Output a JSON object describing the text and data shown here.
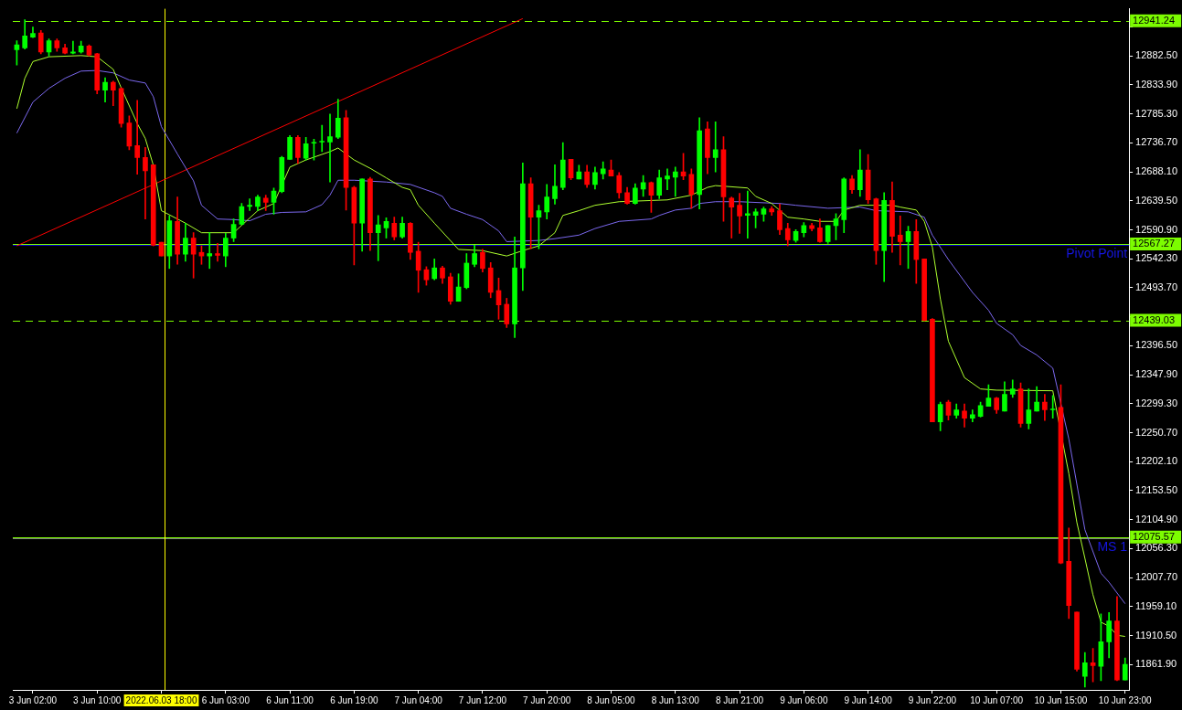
{
  "chart_data": {
    "type": "candlestick",
    "categories": [
      null,
      null,
      "3 Jun 02:00",
      null,
      null,
      null,
      null,
      null,
      null,
      null,
      "3 Jun 10:00",
      null,
      null,
      null,
      null,
      null,
      null,
      null,
      "2022.06.03 18:00",
      null,
      null,
      null,
      null,
      null,
      null,
      null,
      "6 Jun 03:00",
      null,
      null,
      null,
      null,
      null,
      null,
      null,
      "6 Jun 11:00",
      null,
      null,
      null,
      null,
      null,
      null,
      null,
      "6 Jun 19:00",
      null,
      null,
      null,
      null,
      null,
      null,
      null,
      "7 Jun 04:00",
      null,
      null,
      null,
      null,
      null,
      null,
      null,
      "7 Jun 12:00",
      null,
      null,
      null,
      null,
      null,
      null,
      null,
      "7 Jun 20:00",
      null,
      null,
      null,
      null,
      null,
      null,
      null,
      "8 Jun 05:00",
      null,
      null,
      null,
      null,
      null,
      null,
      null,
      "8 Jun 13:00",
      null,
      null,
      null,
      null,
      null,
      null,
      null,
      "8 Jun 21:00",
      null,
      null,
      null,
      null,
      null,
      null,
      null,
      "9 Jun 06:00",
      null,
      null,
      null,
      null,
      null,
      null,
      null,
      "9 Jun 14:00",
      null,
      null,
      null,
      null,
      null,
      null,
      null,
      "9 Jun 22:00",
      null,
      null,
      null,
      null,
      null,
      null,
      null,
      "10 Jun 07:00",
      null,
      null,
      null,
      null,
      null,
      null,
      null,
      "10 Jun 15:00",
      null,
      null,
      null,
      null,
      null,
      null,
      null,
      "10 Jun 23:00"
    ],
    "ohlc": [
      [
        12893,
        12908,
        12867,
        12901
      ],
      [
        12896,
        12943,
        12894,
        12916
      ],
      [
        12914,
        12931,
        12913,
        12920
      ],
      [
        12921,
        12925,
        12886,
        12889
      ],
      [
        12889,
        12911,
        12882,
        12908
      ],
      [
        12908,
        12911,
        12890,
        12896
      ],
      [
        12896,
        12902,
        12886,
        12887
      ],
      [
        12887,
        12907,
        12886,
        12889
      ],
      [
        12889,
        12907,
        12887,
        12899
      ],
      [
        12899,
        12901,
        12882,
        12884
      ],
      [
        12886,
        12887,
        12819,
        12825
      ],
      [
        12825,
        12846,
        12805,
        12838
      ],
      [
        12838,
        12840,
        12799,
        12825
      ],
      [
        12828,
        12829,
        12763,
        12769
      ],
      [
        12770,
        12782,
        12725,
        12731
      ],
      [
        12732,
        12808,
        12684,
        12712
      ],
      [
        12712,
        12729,
        12609,
        12690
      ],
      [
        12700,
        12700,
        12564,
        12565
      ],
      [
        12570,
        12570,
        12547,
        12547
      ],
      [
        12547,
        12614,
        12526,
        12606
      ],
      [
        12605,
        12646,
        12533,
        12550
      ],
      [
        12550,
        12602,
        12538,
        12577
      ],
      [
        12577,
        12586,
        12510,
        12550
      ],
      [
        12553,
        12564,
        12533,
        12547
      ],
      [
        12547,
        12586,
        12526,
        12551
      ],
      [
        12551,
        12568,
        12538,
        12548
      ],
      [
        12547,
        12585,
        12529,
        12577
      ],
      [
        12577,
        12609,
        12571,
        12600
      ],
      [
        12600,
        12635,
        12599,
        12630
      ],
      [
        12630,
        12643,
        12623,
        12632
      ],
      [
        12630,
        12649,
        12623,
        12646
      ],
      [
        12644,
        12649,
        12623,
        12637
      ],
      [
        12637,
        12661,
        12617,
        12656
      ],
      [
        12655,
        12714,
        12653,
        12712
      ],
      [
        12709,
        12749,
        12709,
        12746
      ],
      [
        12746,
        12749,
        12702,
        12712
      ],
      [
        12711,
        12746,
        12708,
        12735
      ],
      [
        12736,
        12743,
        12708,
        12737
      ],
      [
        12738,
        12766,
        12722,
        12739
      ],
      [
        12738,
        12785,
        12671,
        12747
      ],
      [
        12746,
        12810,
        12744,
        12778
      ],
      [
        12779,
        12791,
        12624,
        12662
      ],
      [
        12662,
        12664,
        12532,
        12602
      ],
      [
        12602,
        12676,
        12555,
        12676
      ],
      [
        12676,
        12679,
        12556,
        12586
      ],
      [
        12586,
        12615,
        12539,
        12599
      ],
      [
        12594,
        12611,
        12577,
        12605
      ],
      [
        12602,
        12612,
        12574,
        12579
      ],
      [
        12579,
        12612,
        12577,
        12602
      ],
      [
        12602,
        12603,
        12541,
        12553
      ],
      [
        12555,
        12570,
        12486,
        12523
      ],
      [
        12524,
        12529,
        12498,
        12507
      ],
      [
        12509,
        12542,
        12507,
        12527
      ],
      [
        12527,
        12530,
        12501,
        12510
      ],
      [
        12512,
        12518,
        12466,
        12471
      ],
      [
        12471,
        12517,
        12471,
        12495
      ],
      [
        12494,
        12551,
        12492,
        12535
      ],
      [
        12533,
        12565,
        12529,
        12551
      ],
      [
        12553,
        12558,
        12520,
        12526
      ],
      [
        12527,
        12536,
        12477,
        12486
      ],
      [
        12489,
        12510,
        12441,
        12465
      ],
      [
        12466,
        12476,
        12427,
        12433
      ],
      [
        12433,
        12579,
        12410,
        12527
      ],
      [
        12527,
        12703,
        12489,
        12668
      ],
      [
        12668,
        12678,
        12559,
        12612
      ],
      [
        12612,
        12632,
        12559,
        12623
      ],
      [
        12621,
        12667,
        12609,
        12646
      ],
      [
        12643,
        12700,
        12634,
        12664
      ],
      [
        12662,
        12737,
        12658,
        12708
      ],
      [
        12709,
        12709,
        12675,
        12678
      ],
      [
        12676,
        12699,
        12676,
        12688
      ],
      [
        12688,
        12699,
        12662,
        12667
      ],
      [
        12667,
        12696,
        12659,
        12687
      ],
      [
        12685,
        12705,
        12676,
        12693
      ],
      [
        12691,
        12708,
        12681,
        12681
      ],
      [
        12682,
        12687,
        12644,
        12653
      ],
      [
        12653,
        12662,
        12634,
        12635
      ],
      [
        12635,
        12668,
        12634,
        12661
      ],
      [
        12659,
        12682,
        12647,
        12670
      ],
      [
        12670,
        12671,
        12620,
        12649
      ],
      [
        12649,
        12691,
        12643,
        12678
      ],
      [
        12676,
        12693,
        12658,
        12681
      ],
      [
        12679,
        12696,
        12647,
        12688
      ],
      [
        12688,
        12719,
        12675,
        12681
      ],
      [
        12684,
        12693,
        12627,
        12650
      ],
      [
        12650,
        12779,
        12626,
        12757
      ],
      [
        12760,
        12772,
        12685,
        12712
      ],
      [
        12712,
        12772,
        12688,
        12725
      ],
      [
        12725,
        12747,
        12605,
        12646
      ],
      [
        12644,
        12646,
        12577,
        12629
      ],
      [
        12632,
        12652,
        12585,
        12614
      ],
      [
        12615,
        12656,
        12577,
        12618
      ],
      [
        12615,
        12626,
        12594,
        12621
      ],
      [
        12617,
        12629,
        12605,
        12626
      ],
      [
        12626,
        12630,
        12615,
        12621
      ],
      [
        12623,
        12634,
        12583,
        12591
      ],
      [
        12593,
        12602,
        12564,
        12574
      ],
      [
        12573,
        12591,
        12570,
        12588
      ],
      [
        12586,
        12603,
        12579,
        12598
      ],
      [
        12598,
        12602,
        12589,
        12593
      ],
      [
        12594,
        12609,
        12570,
        12571
      ],
      [
        12571,
        12598,
        12568,
        12598
      ],
      [
        12598,
        12618,
        12574,
        12609
      ],
      [
        12608,
        12678,
        12586,
        12676
      ],
      [
        12676,
        12682,
        12652,
        12658
      ],
      [
        12658,
        12725,
        12647,
        12691
      ],
      [
        12691,
        12717,
        12635,
        12641
      ],
      [
        12643,
        12644,
        12533,
        12556
      ],
      [
        12556,
        12653,
        12504,
        12640
      ],
      [
        12640,
        12671,
        12553,
        12580
      ],
      [
        12582,
        12614,
        12532,
        12571
      ],
      [
        12571,
        12597,
        12526,
        12588
      ],
      [
        12588,
        12608,
        12501,
        12541
      ],
      [
        12542,
        12542,
        12438,
        12439
      ],
      [
        12441,
        12442,
        12269,
        12269
      ],
      [
        12269,
        12302,
        12254,
        12298
      ],
      [
        12302,
        12305,
        12272,
        12280
      ],
      [
        12280,
        12299,
        12275,
        12289
      ],
      [
        12287,
        12299,
        12260,
        12275
      ],
      [
        12275,
        12289,
        12269,
        12281
      ],
      [
        12278,
        12302,
        12277,
        12296
      ],
      [
        12295,
        12331,
        12295,
        12309
      ],
      [
        12309,
        12310,
        12283,
        12289
      ],
      [
        12287,
        12336,
        12287,
        12315
      ],
      [
        12315,
        12339,
        12310,
        12324
      ],
      [
        12324,
        12334,
        12260,
        12266
      ],
      [
        12266,
        12324,
        12257,
        12289
      ],
      [
        12287,
        12328,
        12287,
        12302
      ],
      [
        12302,
        12315,
        12271,
        12289
      ],
      [
        12289,
        12313,
        12275,
        12290
      ],
      [
        12293,
        12331,
        12031,
        12032
      ],
      [
        12035,
        12091,
        11939,
        11961
      ],
      [
        11950,
        11950,
        11851,
        11854
      ],
      [
        11842,
        11882,
        11824,
        11865
      ],
      [
        11865,
        11889,
        11833,
        11860
      ],
      [
        11859,
        11947,
        11835,
        11900
      ],
      [
        11900,
        11949,
        11873,
        11935
      ],
      [
        11935,
        11976,
        11835,
        11836
      ],
      [
        11836,
        11873,
        11836,
        11862
      ]
    ],
    "series": [
      {
        "type": "line",
        "color": "#adff2f",
        "values": [
          12794,
          12845,
          12873,
          null,
          12881,
          null,
          null,
          null,
          12883,
          null,
          12881,
          null,
          12860,
          12829,
          null,
          12769,
          12744,
          12699,
          12623,
          null,
          null,
          12602,
          null,
          12586,
          null,
          null,
          null,
          12586,
          null,
          null,
          12623,
          null,
          12635,
          null,
          12696,
          null,
          12708,
          null,
          null,
          12722,
          12728,
          null,
          12708,
          null,
          12694,
          null,
          12678,
          null,
          12662,
          12658,
          12632,
          null,
          12602,
          null,
          null,
          12558,
          null,
          null,
          12556,
          null,
          null,
          12547,
          null,
          12556,
          null,
          12564,
          null,
          12586,
          12615,
          null,
          12623,
          null,
          12632,
          null,
          null,
          12638,
          null,
          null,
          null,
          12640,
          null,
          12641,
          null,
          null,
          12649,
          null,
          12662,
          12665,
          null,
          null,
          null,
          12661,
          12647,
          null,
          12635,
          null,
          12612,
          null,
          12609,
          null,
          12605,
          null,
          12605,
          12624,
          null,
          12632,
          null,
          null,
          null,
          12632,
          12629,
          null,
          12624,
          12605,
          12562,
          12475,
          12404,
          null,
          12343,
          null,
          12324,
          null,
          12322,
          null,
          null,
          null,
          null,
          null,
          null,
          12321,
          null,
          12182,
          12100,
          12040,
          11979,
          11933,
          11926,
          11911,
          11909
        ]
      },
      {
        "type": "line",
        "color": "#7b68ee",
        "values": [
          12753,
          null,
          12805,
          null,
          12828,
          null,
          12845,
          null,
          12857,
          null,
          12858,
          null,
          12854,
          null,
          12842,
          null,
          12837,
          12814,
          12764,
          null,
          12718,
          null,
          12673,
          12632,
          null,
          12609,
          null,
          12608,
          null,
          12606,
          null,
          12617,
          null,
          12620,
          null,
          null,
          12621,
          null,
          12633,
          12649,
          12674,
          null,
          12674,
          null,
          null,
          null,
          12671,
          null,
          null,
          12667,
          null,
          null,
          12653,
          12647,
          12627,
          null,
          12617,
          null,
          12608,
          null,
          12589,
          12571,
          null,
          null,
          null,
          12573,
          null,
          12576,
          null,
          null,
          12582,
          null,
          12593,
          null,
          null,
          12605,
          null,
          null,
          null,
          12609,
          12615,
          null,
          12624,
          null,
          12627,
          12635,
          null,
          12638,
          null,
          null,
          12638,
          null,
          null,
          null,
          null,
          12635,
          null,
          12632,
          null,
          null,
          null,
          12627,
          null,
          null,
          null,
          12629,
          null,
          12623,
          null,
          null,
          null,
          12621,
          null,
          12612,
          12582,
          null,
          12541,
          null,
          null,
          12486,
          null,
          12456,
          12434,
          null,
          12415,
          12397,
          null,
          12381,
          null,
          12359,
          null,
          12240,
          null,
          12088,
          null,
          12015,
          12000,
          null,
          11964
        ]
      },
      {
        "type": "line",
        "color": "#ff0000",
        "values": [
          12564,
          null,
          null,
          null,
          null,
          null,
          null,
          null,
          null,
          null,
          null,
          null,
          null,
          null,
          null,
          null,
          null,
          null,
          null,
          null,
          null,
          null,
          null,
          null,
          null,
          null,
          null,
          null,
          null,
          null,
          null,
          null,
          null,
          null,
          null,
          null,
          null,
          null,
          null,
          null,
          null,
          null,
          null,
          null,
          null,
          null,
          null,
          null,
          null,
          null,
          null,
          null,
          null,
          null,
          null,
          null,
          null,
          null,
          null,
          null,
          null,
          null,
          null,
          12945,
          null,
          null,
          null,
          null,
          null,
          null,
          null,
          null,
          null,
          null,
          null,
          null,
          null,
          null,
          null,
          null,
          null,
          null,
          null,
          null,
          null,
          null,
          null,
          null,
          null,
          null,
          null,
          null,
          null,
          null,
          null,
          null,
          null,
          null,
          null,
          null,
          null,
          null,
          null,
          null,
          null,
          null,
          null,
          null,
          null,
          null,
          null,
          null,
          null,
          null,
          null,
          null,
          null,
          null,
          null,
          null,
          null,
          null,
          null,
          null,
          null,
          null,
          null,
          null,
          null,
          null,
          null,
          null,
          null,
          null,
          null,
          null,
          null,
          null,
          null
        ]
      }
    ],
    "ylim": [
      11819.4,
      12961.5
    ],
    "yticks": [
      {
        "value": 11861.9,
        "label": "11861.90"
      },
      {
        "value": 11910.5,
        "label": "11910.50"
      },
      {
        "value": 11959.1,
        "label": "11959.10"
      },
      {
        "value": 12007.7,
        "label": "12007.70"
      },
      {
        "value": 12056.3,
        "label": "12056.30"
      },
      {
        "value": 12104.9,
        "label": "12104.90"
      },
      {
        "value": 12153.5,
        "label": "12153.50"
      },
      {
        "value": 12202.1,
        "label": "12202.10"
      },
      {
        "value": 12250.7,
        "label": "12250.70"
      },
      {
        "value": 12299.3,
        "label": "12299.30"
      },
      {
        "value": 12347.9,
        "label": "12347.90"
      },
      {
        "value": 12396.5,
        "label": "12396.50"
      },
      {
        "value": 12445.1,
        "label": null
      },
      {
        "value": 12493.7,
        "label": "12493.70"
      },
      {
        "value": 12542.3,
        "label": "12542.30"
      },
      {
        "value": 12590.9,
        "label": "12590.90"
      },
      {
        "value": 12639.5,
        "label": "12639.50"
      },
      {
        "value": 12688.1,
        "label": "12688.10"
      },
      {
        "value": 12736.7,
        "label": "12736.70"
      },
      {
        "value": 12785.3,
        "label": "12785.30"
      },
      {
        "value": 12833.9,
        "label": "12833.90"
      },
      {
        "value": 12882.5,
        "label": "12882.50"
      },
      {
        "value": 12931.1,
        "label": null
      }
    ],
    "ref_lines": [
      {
        "axis": "y",
        "value": 12941.24,
        "color": "#7cfc00",
        "line_style": "dashed",
        "label": "12941.24"
      },
      {
        "axis": "y",
        "value": 12567.27,
        "color": "#7cfc00",
        "label": "12567.27"
      },
      {
        "axis": "y",
        "value": 12566,
        "color": "#0000cd",
        "label": "Pivot Point"
      },
      {
        "axis": "y",
        "value": 12439.03,
        "color": "#7cfc00",
        "line_style": "dashed",
        "label": "12439.03"
      },
      {
        "axis": "y",
        "value": 12075.57,
        "color": "#7cfc00",
        "label": "12075.57"
      },
      {
        "axis": "y",
        "value": 12073,
        "color": "#808080",
        "label": "MS 1"
      },
      {
        "axis": "x",
        "value": "2022.06.03 18:00",
        "color": "#ffff00"
      }
    ]
  }
}
